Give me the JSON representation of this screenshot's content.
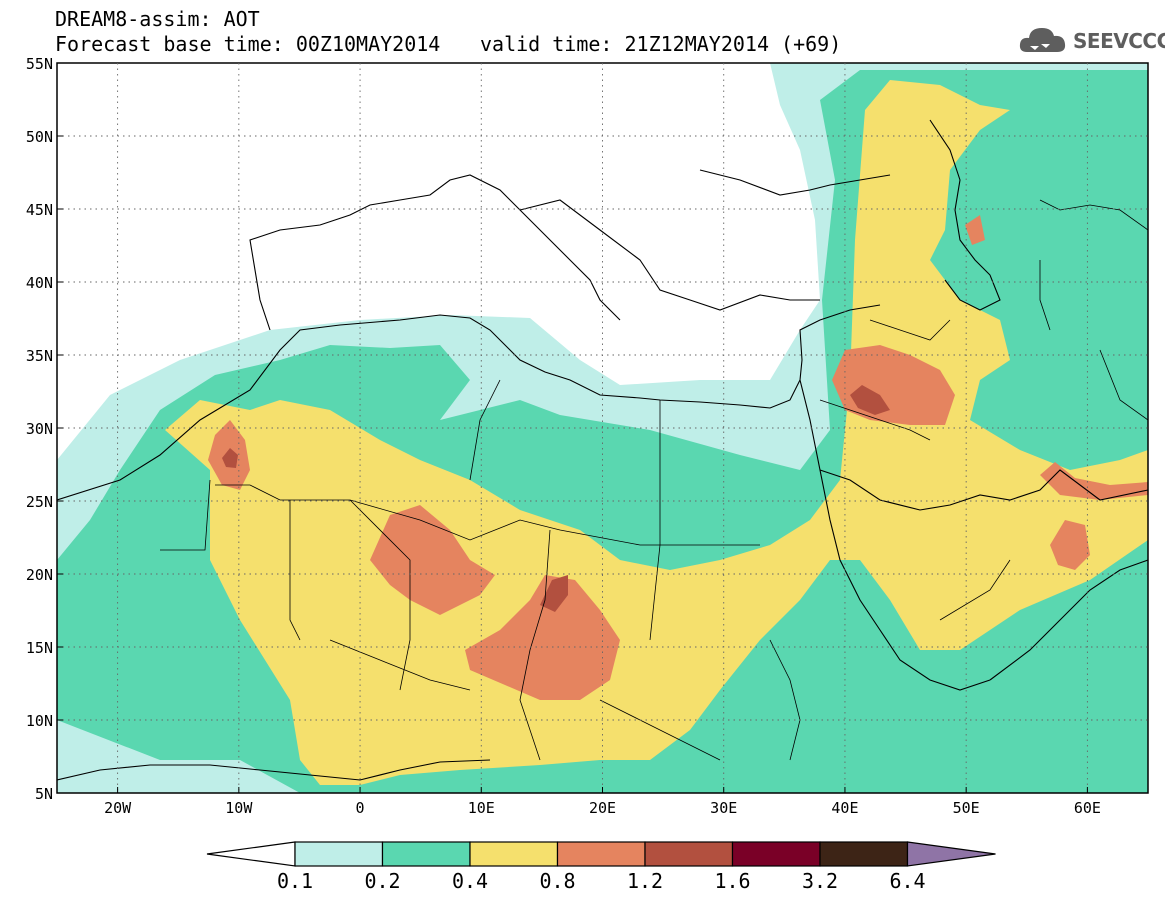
{
  "header": {
    "title_line1": "DREAM8-assim: AOT",
    "title_line2": "Forecast base time: 00Z10MAY2014",
    "valid_time": "valid time: 21Z12MAY2014 (+69)"
  },
  "logo": {
    "text": "SEEVCCC",
    "icon": "cloud-logo-icon"
  },
  "map": {
    "lat_labels": [
      "55N",
      "50N",
      "45N",
      "40N",
      "35N",
      "30N",
      "25N",
      "20N",
      "15N",
      "10N",
      "5N"
    ],
    "lon_labels": [
      "20W",
      "10W",
      "0",
      "10E",
      "20E",
      "30E",
      "40E",
      "50E",
      "60E"
    ],
    "lon_range": [
      -25,
      65
    ],
    "lat_range": [
      5,
      55
    ],
    "gridlines": "dotted"
  },
  "colorbar": {
    "ticks": [
      "0.1",
      "0.2",
      "0.4",
      "0.8",
      "1.2",
      "1.6",
      "3.2",
      "6.4"
    ],
    "colors": [
      "#ffffff",
      "#bfeee8",
      "#5ad7b0",
      "#f5e06d",
      "#e5845f",
      "#b2503f",
      "#7a0027",
      "#3d2416",
      "#8f74a6"
    ]
  }
}
